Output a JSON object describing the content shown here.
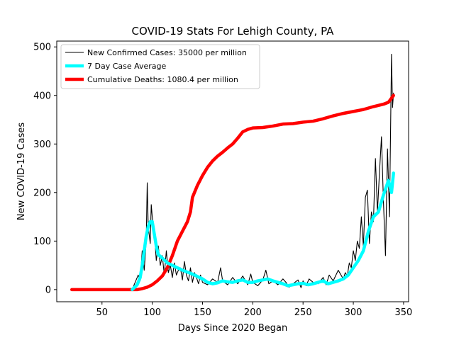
{
  "chart_data": {
    "type": "line",
    "title": "COVID-19 Stats For Lehigh County, PA",
    "xlabel": "Days Since 2020 Began",
    "ylabel": "New COVID-19 Cases",
    "xlim": [
      5,
      355
    ],
    "ylim": [
      -25,
      512
    ],
    "xticks": [
      50,
      100,
      150,
      200,
      250,
      300,
      350
    ],
    "yticks": [
      0,
      100,
      200,
      300,
      400,
      500
    ],
    "grid": false,
    "legend": "top-left",
    "series": [
      {
        "name": "New Confirmed Cases: 35000 per million",
        "color": "#000000",
        "style": "thin-line",
        "x": [
          20,
          30,
          40,
          50,
          60,
          70,
          80,
          82,
          84,
          86,
          88,
          90,
          92,
          94,
          95,
          96,
          98,
          99,
          100,
          102,
          104,
          106,
          108,
          110,
          112,
          114,
          116,
          118,
          120,
          122,
          124,
          126,
          128,
          130,
          132,
          134,
          136,
          138,
          140,
          142,
          144,
          146,
          148,
          150,
          155,
          160,
          165,
          168,
          170,
          175,
          180,
          185,
          190,
          195,
          198,
          200,
          205,
          210,
          213,
          216,
          220,
          225,
          230,
          233,
          236,
          240,
          245,
          248,
          250,
          253,
          256,
          260,
          265,
          270,
          273,
          276,
          280,
          285,
          290,
          292,
          294,
          296,
          298,
          300,
          302,
          304,
          306,
          308,
          310,
          312,
          314,
          316,
          318,
          320,
          322,
          324,
          326,
          328,
          330,
          332,
          334,
          336,
          338,
          339,
          340
        ],
        "values": [
          0,
          0,
          0,
          0,
          0,
          0,
          0,
          10,
          20,
          30,
          18,
          80,
          40,
          100,
          220,
          130,
          95,
          175,
          150,
          120,
          60,
          90,
          50,
          70,
          30,
          80,
          35,
          50,
          25,
          55,
          30,
          40,
          45,
          20,
          58,
          30,
          18,
          45,
          15,
          35,
          25,
          12,
          30,
          15,
          10,
          22,
          15,
          45,
          18,
          10,
          25,
          12,
          28,
          10,
          32,
          15,
          8,
          20,
          40,
          12,
          18,
          10,
          22,
          15,
          5,
          12,
          20,
          4,
          18,
          8,
          22,
          15,
          12,
          25,
          10,
          30,
          18,
          40,
          22,
          35,
          28,
          55,
          45,
          80,
          60,
          100,
          85,
          150,
          90,
          190,
          205,
          95,
          160,
          140,
          270,
          160,
          240,
          315,
          180,
          70,
          290,
          150,
          485,
          375,
          405
        ]
      },
      {
        "name": "7 Day Case Average",
        "color": "#00ffff",
        "style": "thick-line",
        "x": [
          80,
          85,
          88,
          90,
          92,
          94,
          96,
          98,
          100,
          102,
          104,
          106,
          110,
          115,
          120,
          130,
          140,
          150,
          155,
          160,
          165,
          170,
          175,
          180,
          185,
          190,
          195,
          200,
          205,
          210,
          215,
          220,
          225,
          230,
          235,
          240,
          245,
          250,
          255,
          260,
          265,
          270,
          275,
          280,
          285,
          290,
          295,
          300,
          305,
          310,
          315,
          320,
          325,
          330,
          335,
          338,
          340
        ],
        "values": [
          0,
          10,
          25,
          50,
          80,
          110,
          130,
          140,
          140,
          115,
          90,
          72,
          65,
          55,
          50,
          40,
          32,
          22,
          15,
          12,
          14,
          18,
          16,
          15,
          18,
          20,
          15,
          15,
          18,
          20,
          22,
          18,
          15,
          12,
          8,
          10,
          12,
          13,
          10,
          12,
          15,
          18,
          12,
          15,
          18,
          22,
          30,
          45,
          60,
          80,
          120,
          150,
          160,
          195,
          225,
          200,
          240
        ]
      },
      {
        "name": "Cumulative Deaths: 1080.4 per million",
        "color": "#ff0000",
        "style": "thick-line",
        "x": [
          20,
          30,
          40,
          50,
          60,
          70,
          80,
          85,
          90,
          95,
          100,
          105,
          110,
          115,
          120,
          125,
          130,
          135,
          138,
          140,
          145,
          150,
          155,
          160,
          165,
          170,
          175,
          180,
          185,
          190,
          195,
          200,
          210,
          220,
          230,
          240,
          250,
          260,
          270,
          280,
          290,
          300,
          310,
          320,
          330,
          335,
          340
        ],
        "values": [
          0,
          0,
          0,
          0,
          0,
          0,
          0,
          0,
          2,
          5,
          10,
          18,
          28,
          45,
          70,
          100,
          120,
          140,
          160,
          190,
          215,
          235,
          252,
          265,
          275,
          283,
          292,
          300,
          312,
          325,
          330,
          333,
          334,
          337,
          341,
          342,
          345,
          347,
          352,
          358,
          363,
          367,
          371,
          377,
          382,
          386,
          400
        ]
      }
    ]
  }
}
